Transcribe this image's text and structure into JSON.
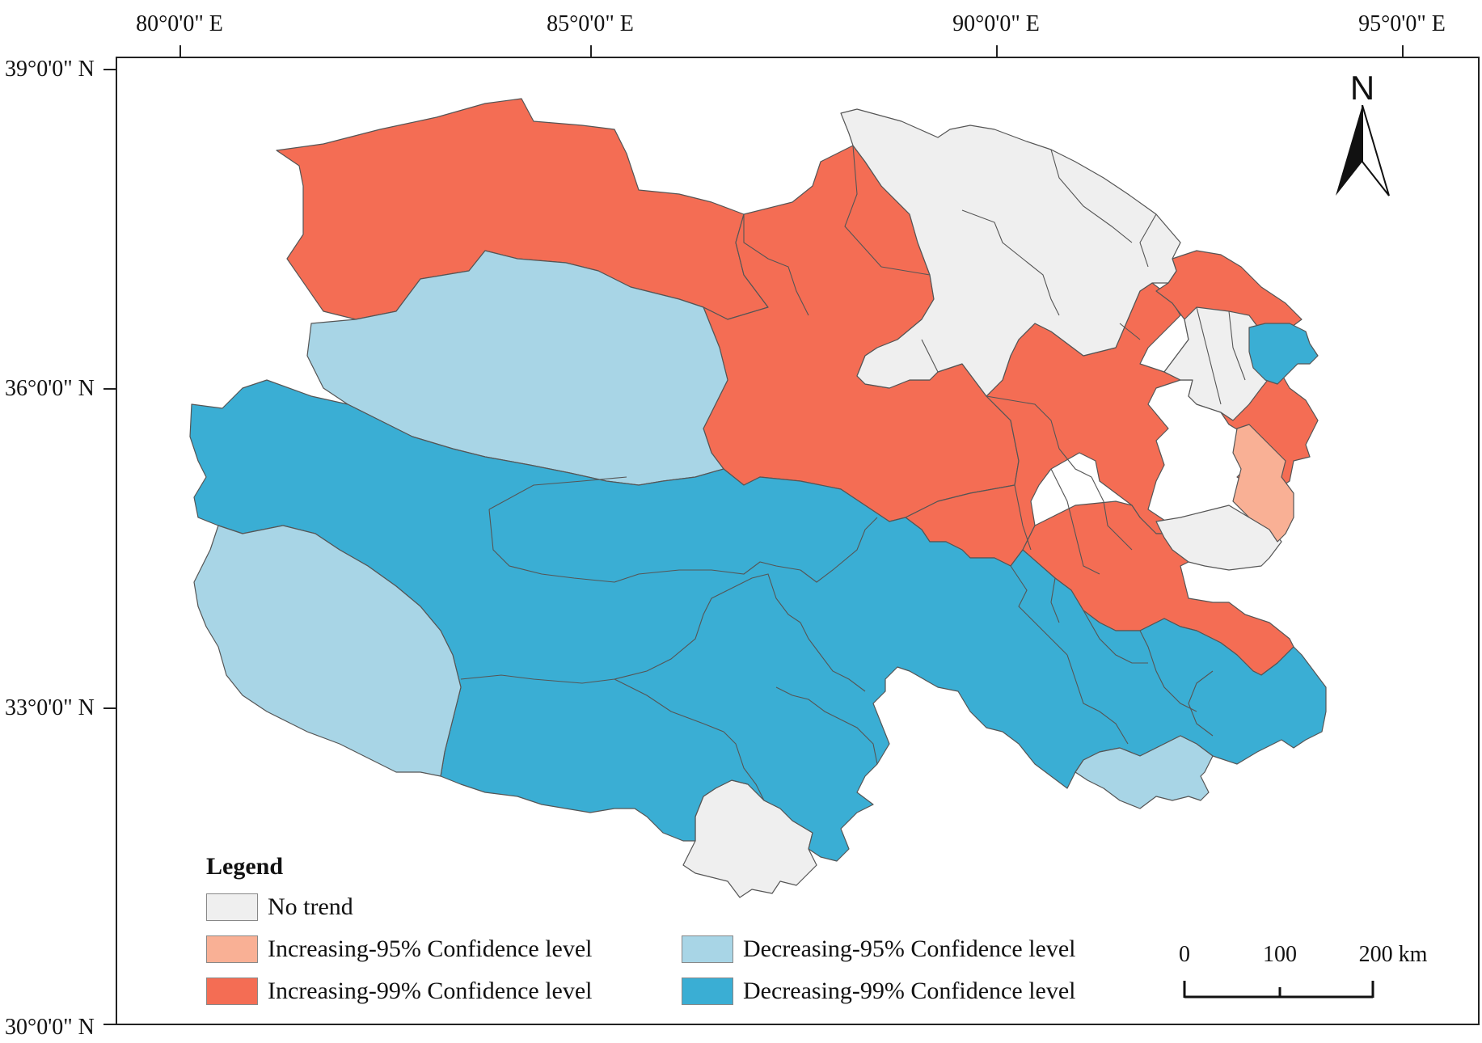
{
  "axes": {
    "longitude_labels": [
      "80°0'0\" E",
      "85°0'0\" E",
      "90°0'0\" E",
      "95°0'0\" E"
    ],
    "latitude_labels": [
      "39°0'0\" N",
      "36°0'0\" N",
      "33°0'0\" N",
      "30°0'0\" N"
    ]
  },
  "north_arrow": {
    "label": "N",
    "icon": "north-arrow-icon"
  },
  "legend": {
    "title": "Legend",
    "items": [
      {
        "label": "No trend",
        "color": "#efefef"
      },
      {
        "label": "Increasing-95% Confidence level",
        "color": "#f9b095"
      },
      {
        "label": "Increasing-99% Confidence level",
        "color": "#f46d54"
      },
      {
        "label": "Decreasing-95% Confidence level",
        "color": "#a8d5e6"
      },
      {
        "label": "Decreasing-99% Confidence level",
        "color": "#3aaed4"
      }
    ]
  },
  "scale_bar": {
    "labels": [
      "0",
      "100",
      "200 km"
    ]
  },
  "colors": {
    "no_trend": "#efefef",
    "inc95": "#f9b095",
    "inc99": "#f46d54",
    "dec95": "#a8d5e6",
    "dec99": "#3aaed4",
    "border": "#555555"
  }
}
